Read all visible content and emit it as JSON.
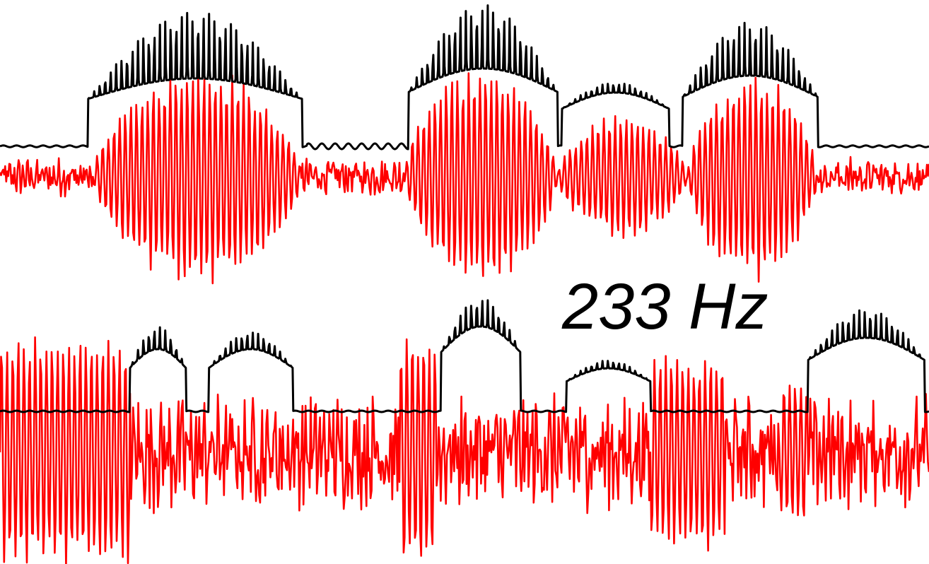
{
  "annotation": {
    "text": "233 Hz"
  },
  "colors": {
    "envelope": "#000000",
    "signal": "#ff0000",
    "background": "#ffffff"
  },
  "chart_data": {
    "type": "line",
    "title": "",
    "xlabel": "",
    "ylabel": "",
    "grid": false,
    "legend": "none",
    "annotation": "233 Hz",
    "xlim": [
      0,
      1
    ],
    "panels": [
      {
        "position": "top",
        "ylim": [
          -1,
          1
        ],
        "series": [
          {
            "role": "envelope",
            "color": "#000000",
            "baseline": 0.35,
            "bursts": [
              {
                "start": 0.095,
                "end": 0.325,
                "plateau": 0.48,
                "spike": 0.95
              },
              {
                "start": 0.44,
                "end": 0.6,
                "plateau": 0.55,
                "spike": 1.0
              },
              {
                "start": 0.605,
                "end": 0.72,
                "plateau": 0.38,
                "spike": 0.45
              },
              {
                "start": 0.735,
                "end": 0.88,
                "plateau": 0.5,
                "spike": 0.88
              }
            ]
          },
          {
            "role": "signal",
            "color": "#ff0000",
            "noise_amplitude": 0.12,
            "bursts": [
              {
                "start": 0.1,
                "end": 0.325,
                "amplitude": 0.98
              },
              {
                "start": 0.435,
                "end": 0.6,
                "amplitude": 1.0
              },
              {
                "start": 0.6,
                "end": 0.74,
                "amplitude": 0.55
              },
              {
                "start": 0.74,
                "end": 0.88,
                "amplitude": 0.95
              }
            ]
          }
        ]
      },
      {
        "position": "bottom",
        "ylim": [
          -1,
          1
        ],
        "series": [
          {
            "role": "envelope",
            "color": "#000000",
            "baseline": 0.25,
            "bursts": [
              {
                "start": 0.14,
                "end": 0.2,
                "plateau": 0.55,
                "spike": 0.75
              },
              {
                "start": 0.225,
                "end": 0.315,
                "plateau": 0.55,
                "spike": 0.7
              },
              {
                "start": 0.475,
                "end": 0.56,
                "plateau": 0.75,
                "spike": 1.0
              },
              {
                "start": 0.61,
                "end": 0.7,
                "plateau": 0.38,
                "spike": 0.45
              },
              {
                "start": 0.87,
                "end": 0.995,
                "plateau": 0.65,
                "spike": 0.9
              }
            ]
          },
          {
            "role": "signal",
            "color": "#ff0000",
            "noise_amplitude": 0.35,
            "bursts": [
              {
                "start": 0.0,
                "end": 0.14,
                "amplitude": 1.0
              },
              {
                "start": 0.43,
                "end": 0.47,
                "amplitude": 1.0
              },
              {
                "start": 0.7,
                "end": 0.78,
                "amplitude": 0.85
              },
              {
                "start": 0.84,
                "end": 0.87,
                "amplitude": 0.65
              }
            ]
          }
        ]
      }
    ]
  }
}
